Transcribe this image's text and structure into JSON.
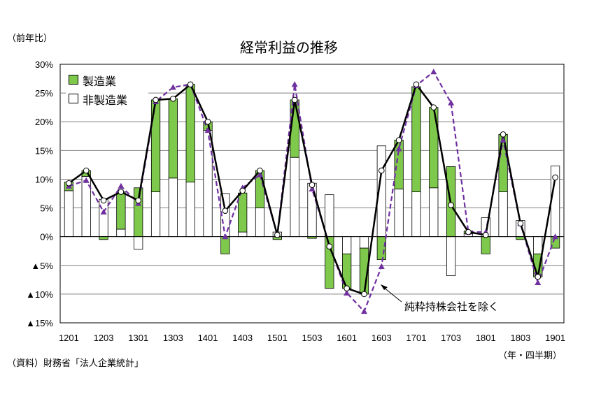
{
  "chart_data": {
    "type": "bar",
    "title": "経常利益の推移",
    "ylabel": "（前年比）",
    "xlabel": "（年・四半期）",
    "source": "（資料）財務省「法人企業統計」",
    "annotation": "純粋持株会社を除く",
    "ylim": [
      -15,
      30
    ],
    "y_ticks": [
      {
        "value": 30,
        "label": "30%"
      },
      {
        "value": 25,
        "label": "25%"
      },
      {
        "value": 20,
        "label": "20%"
      },
      {
        "value": 15,
        "label": "15%"
      },
      {
        "value": 10,
        "label": "10%"
      },
      {
        "value": 5,
        "label": "5%"
      },
      {
        "value": 0,
        "label": "0%"
      },
      {
        "value": -5,
        "label": "▲5%"
      },
      {
        "value": -10,
        "label": "▲10%"
      },
      {
        "value": -15,
        "label": "▲15%"
      }
    ],
    "categories": [
      "1201",
      "1202",
      "1203",
      "1204",
      "1301",
      "1302",
      "1303",
      "1304",
      "1401",
      "1402",
      "1403",
      "1404",
      "1501",
      "1502",
      "1503",
      "1504",
      "1601",
      "1602",
      "1603",
      "1604",
      "1701",
      "1702",
      "1703",
      "1704",
      "1801",
      "1802",
      "1803",
      "1804",
      "1901"
    ],
    "x_tick_labels": [
      "1201",
      "1203",
      "1301",
      "1303",
      "1401",
      "1403",
      "1501",
      "1503",
      "1601",
      "1603",
      "1701",
      "1703",
      "1801",
      "1803",
      "1901"
    ],
    "grid": true,
    "legend_position": "top-left",
    "series": [
      {
        "name": "製造業",
        "kind": "stacked-bar",
        "color": "#7ec94b",
        "values": [
          1.5,
          1.0,
          -0.5,
          6.5,
          8.5,
          16.0,
          13.8,
          17.0,
          1.5,
          -3.0,
          6.8,
          6.5,
          -0.5,
          10.0,
          -0.3,
          -9.0,
          -6.0,
          -8.0,
          -4.0,
          8.5,
          18.3,
          14.0,
          12.2,
          0.5,
          -3.0,
          10.0,
          -0.5,
          -4.0,
          -2.0
        ]
      },
      {
        "name": "非製造業",
        "kind": "stacked-bar",
        "color": "#ffffff",
        "values": [
          8.0,
          10.5,
          6.5,
          1.3,
          -2.2,
          7.8,
          10.2,
          9.5,
          18.5,
          7.5,
          0.8,
          5.0,
          0.8,
          13.8,
          9.3,
          7.3,
          -3.0,
          -2.0,
          15.8,
          8.3,
          7.8,
          8.5,
          -6.8,
          0.5,
          3.3,
          7.8,
          2.8,
          -3.0,
          12.3
        ]
      },
      {
        "name": "",
        "kind": "line",
        "color": "#000000",
        "values": [
          9.3,
          11.5,
          6.3,
          7.8,
          6.3,
          23.8,
          24.0,
          26.5,
          20.0,
          4.5,
          8.0,
          11.5,
          0.3,
          23.8,
          9.0,
          -1.7,
          -9.0,
          -10.0,
          11.5,
          16.8,
          26.5,
          22.5,
          5.5,
          0.8,
          0.3,
          17.8,
          2.3,
          -7.0,
          10.3
        ]
      },
      {
        "name": "純粋持株会社を除く",
        "kind": "dashed-line",
        "color": "#7030a0",
        "values": [
          8.8,
          9.8,
          4.3,
          8.8,
          5.8,
          23.5,
          26.0,
          26.5,
          18.5,
          0.0,
          8.5,
          10.8,
          0.3,
          26.5,
          8.3,
          -1.5,
          -9.8,
          -13.0,
          -5.2,
          15.3,
          26.3,
          28.7,
          23.3,
          0.8,
          0.8,
          16.8,
          2.3,
          -8.0,
          0.0
        ]
      }
    ]
  }
}
